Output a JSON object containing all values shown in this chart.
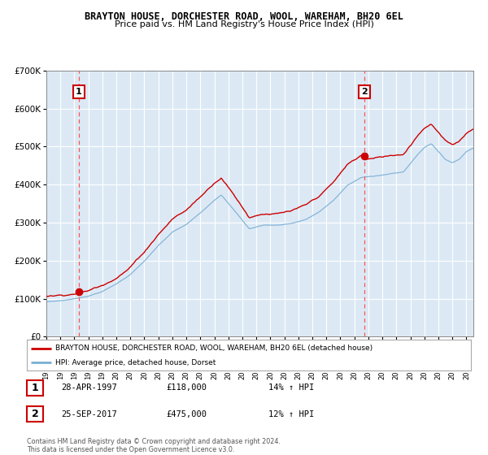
{
  "title": "BRAYTON HOUSE, DORCHESTER ROAD, WOOL, WAREHAM, BH20 6EL",
  "subtitle": "Price paid vs. HM Land Registry's House Price Index (HPI)",
  "legend_line1": "BRAYTON HOUSE, DORCHESTER ROAD, WOOL, WAREHAM, BH20 6EL (detached house)",
  "legend_line2": "HPI: Average price, detached house, Dorset",
  "annotation1_label": "1",
  "annotation1_date": "28-APR-1997",
  "annotation1_price": "£118,000",
  "annotation1_hpi": "14% ↑ HPI",
  "annotation2_label": "2",
  "annotation2_date": "25-SEP-2017",
  "annotation2_price": "£475,000",
  "annotation2_hpi": "12% ↑ HPI",
  "footer": "Contains HM Land Registry data © Crown copyright and database right 2024.\nThis data is licensed under the Open Government Licence v3.0.",
  "red_line_color": "#cc0000",
  "blue_line_color": "#7bafd4",
  "background_color": "#dce9f5",
  "grid_color": "#ffffff",
  "dashed_line_color": "#ff5555",
  "marker1_x": 1997.32,
  "marker1_y": 118000,
  "marker2_x": 2017.73,
  "marker2_y": 475000,
  "ylim": [
    0,
    700000
  ],
  "xlim": [
    1995.0,
    2025.5
  ]
}
